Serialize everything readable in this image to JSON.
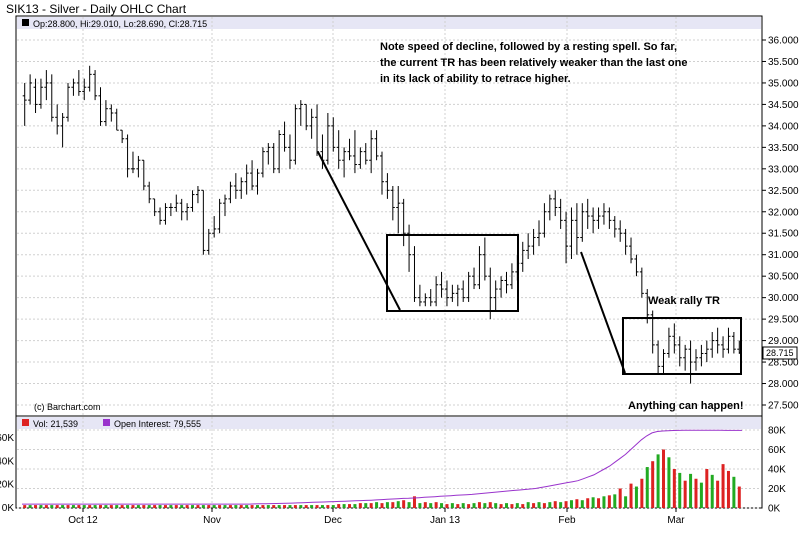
{
  "title": "SIK13 - Silver - Daily OHLC Chart",
  "price_header": "Op:28.800, Hi:29.010, Lo:28.690, Cl:28.715",
  "volume_header": "Vol: 21,539",
  "oi_header": "Open Interest: 79,555",
  "copyright": "(c) Barchart.com",
  "last_price_label": "28.715",
  "annotations": {
    "note_line1": "Note speed of decline, followed by a resting spell.  So far,",
    "note_line2": "the current TR has been relatively weaker than the last one",
    "note_line3": "in its lack of ability to retrace higher.",
    "weak_rally": "Weak rally TR",
    "anything": "Anything can happen!"
  },
  "colors": {
    "up_volume": "#22aa22",
    "down_volume": "#dd2222",
    "oi_line": "#9933cc",
    "header_bar": "#e6e6f5",
    "grid": "#d0d0d0"
  },
  "chart_data": {
    "type": "ohlc",
    "price_axis": {
      "min": 27.5,
      "max": 36.0,
      "ticks": [
        "36.000",
        "35.500",
        "35.000",
        "34.500",
        "34.000",
        "33.500",
        "33.000",
        "32.500",
        "32.000",
        "31.500",
        "31.000",
        "30.500",
        "30.000",
        "29.500",
        "29.000",
        "28.500",
        "28.000",
        "27.500"
      ]
    },
    "volume_axis": {
      "ticks_left": [
        "60K",
        "40K",
        "20K",
        "0K"
      ],
      "ticks_right": [
        "80K",
        "60K",
        "40K",
        "20K",
        "0K"
      ]
    },
    "x_labels": [
      "Oct 12",
      "Nov",
      "Dec",
      "Jan 13",
      "Feb",
      "Mar"
    ],
    "bars": [
      [
        34.7,
        35.0,
        34.0,
        34.6
      ],
      [
        34.6,
        35.2,
        34.5,
        35.0
      ],
      [
        34.9,
        35.1,
        34.3,
        34.5
      ],
      [
        34.5,
        35.1,
        34.4,
        34.9
      ],
      [
        34.9,
        35.3,
        34.6,
        35.0
      ],
      [
        35.0,
        35.2,
        34.1,
        34.2
      ],
      [
        34.2,
        34.5,
        33.8,
        34.0
      ],
      [
        34.0,
        34.3,
        33.5,
        34.2
      ],
      [
        34.2,
        35.0,
        34.1,
        34.9
      ],
      [
        34.9,
        35.1,
        34.7,
        35.0
      ],
      [
        35.0,
        35.3,
        34.7,
        34.8
      ],
      [
        34.8,
        35.1,
        34.6,
        34.9
      ],
      [
        34.9,
        35.4,
        34.8,
        35.2
      ],
      [
        35.2,
        35.3,
        34.6,
        34.7
      ],
      [
        34.7,
        34.9,
        34.0,
        34.1
      ],
      [
        34.1,
        34.6,
        34.0,
        34.4
      ],
      [
        34.4,
        34.5,
        34.1,
        34.3
      ],
      [
        34.3,
        34.4,
        33.9,
        33.9
      ],
      [
        33.9,
        33.9,
        33.6,
        33.7
      ],
      [
        33.7,
        33.8,
        32.8,
        33.0
      ],
      [
        33.0,
        33.4,
        32.9,
        33.0
      ],
      [
        33.0,
        33.3,
        32.8,
        33.2
      ],
      [
        33.2,
        33.2,
        32.5,
        32.6
      ],
      [
        32.6,
        32.7,
        32.2,
        32.3
      ],
      [
        32.3,
        32.3,
        31.9,
        32.0
      ],
      [
        32.0,
        32.1,
        31.7,
        31.8
      ],
      [
        31.8,
        32.2,
        31.7,
        32.1
      ],
      [
        32.1,
        32.2,
        31.9,
        32.1
      ],
      [
        32.1,
        32.4,
        32.0,
        32.2
      ],
      [
        32.2,
        32.3,
        31.8,
        32.0
      ],
      [
        32.0,
        32.2,
        31.8,
        32.1
      ],
      [
        32.1,
        32.5,
        32.0,
        32.4
      ],
      [
        32.4,
        32.6,
        32.2,
        32.5
      ],
      [
        32.5,
        32.5,
        31.0,
        31.1
      ],
      [
        31.1,
        31.6,
        31.0,
        31.5
      ],
      [
        31.5,
        31.9,
        31.4,
        31.6
      ],
      [
        31.6,
        32.3,
        31.5,
        32.2
      ],
      [
        32.2,
        32.4,
        31.9,
        32.3
      ],
      [
        32.3,
        32.7,
        32.2,
        32.6
      ],
      [
        32.6,
        32.9,
        32.3,
        32.5
      ],
      [
        32.5,
        32.8,
        32.3,
        32.7
      ],
      [
        32.7,
        33.1,
        32.4,
        32.9
      ],
      [
        32.9,
        33.2,
        32.5,
        32.6
      ],
      [
        32.6,
        33.0,
        32.4,
        32.9
      ],
      [
        32.9,
        33.5,
        32.8,
        33.4
      ],
      [
        33.4,
        33.6,
        33.1,
        33.5
      ],
      [
        33.5,
        33.6,
        32.9,
        33.0
      ],
      [
        33.0,
        33.9,
        32.9,
        33.8
      ],
      [
        33.8,
        34.1,
        33.4,
        33.5
      ],
      [
        33.5,
        33.8,
        33.0,
        33.2
      ],
      [
        33.2,
        34.5,
        33.1,
        34.4
      ],
      [
        34.4,
        34.6,
        34.0,
        34.5
      ],
      [
        34.5,
        34.5,
        33.9,
        34.0
      ],
      [
        34.0,
        34.4,
        33.7,
        34.2
      ],
      [
        34.2,
        34.5,
        33.3,
        33.4
      ],
      [
        33.4,
        33.8,
        33.0,
        33.2
      ],
      [
        33.2,
        34.3,
        33.1,
        34.0
      ],
      [
        34.0,
        34.2,
        33.4,
        33.5
      ],
      [
        33.5,
        33.9,
        33.0,
        33.2
      ],
      [
        33.2,
        33.5,
        32.8,
        33.4
      ],
      [
        33.4,
        33.7,
        33.2,
        33.3
      ],
      [
        33.3,
        33.9,
        32.9,
        33.1
      ],
      [
        33.1,
        33.5,
        33.0,
        33.4
      ],
      [
        33.4,
        33.6,
        33.1,
        33.2
      ],
      [
        33.2,
        33.9,
        32.9,
        33.7
      ],
      [
        33.7,
        33.9,
        33.2,
        33.3
      ],
      [
        33.3,
        33.4,
        32.4,
        32.7
      ],
      [
        32.7,
        32.9,
        32.3,
        32.5
      ],
      [
        32.5,
        32.6,
        31.8,
        32.1
      ],
      [
        32.1,
        32.6,
        31.5,
        32.2
      ],
      [
        32.2,
        32.3,
        31.2,
        31.5
      ],
      [
        31.5,
        31.7,
        30.6,
        31.0
      ],
      [
        31.0,
        31.2,
        29.9,
        30.0
      ],
      [
        30.0,
        30.3,
        29.8,
        29.9
      ],
      [
        29.9,
        30.1,
        29.8,
        30.0
      ],
      [
        30.0,
        30.2,
        29.8,
        29.9
      ],
      [
        29.9,
        30.5,
        29.8,
        30.3
      ],
      [
        30.3,
        30.6,
        30.0,
        30.2
      ],
      [
        30.2,
        30.4,
        29.8,
        30.0
      ],
      [
        30.0,
        30.3,
        29.9,
        30.1
      ],
      [
        30.1,
        30.3,
        29.8,
        30.2
      ],
      [
        30.2,
        30.4,
        29.9,
        30.0
      ],
      [
        30.0,
        30.6,
        29.9,
        30.5
      ],
      [
        30.5,
        30.7,
        30.2,
        30.3
      ],
      [
        30.3,
        31.2,
        30.2,
        31.0
      ],
      [
        31.0,
        31.4,
        30.4,
        30.5
      ],
      [
        30.5,
        30.7,
        29.5,
        30.0
      ],
      [
        30.0,
        30.4,
        29.7,
        30.2
      ],
      [
        30.2,
        30.5,
        30.0,
        30.4
      ],
      [
        30.4,
        30.6,
        30.1,
        30.3
      ],
      [
        30.3,
        30.8,
        30.2,
        30.6
      ],
      [
        30.6,
        31.0,
        30.4,
        30.8
      ],
      [
        30.8,
        31.3,
        30.6,
        31.1
      ],
      [
        31.1,
        31.5,
        30.9,
        31.2
      ],
      [
        31.2,
        31.6,
        31.0,
        31.4
      ],
      [
        31.4,
        31.8,
        31.2,
        31.5
      ],
      [
        31.5,
        32.2,
        31.4,
        32.0
      ],
      [
        32.0,
        32.4,
        31.8,
        32.3
      ],
      [
        32.3,
        32.5,
        31.9,
        32.1
      ],
      [
        32.1,
        32.3,
        31.6,
        31.8
      ],
      [
        31.8,
        32.0,
        30.8,
        31.2
      ],
      [
        31.2,
        32.1,
        30.9,
        31.8
      ],
      [
        31.8,
        32.2,
        31.0,
        31.4
      ],
      [
        31.4,
        32.2,
        31.3,
        32.0
      ],
      [
        32.0,
        32.3,
        31.6,
        31.9
      ],
      [
        31.9,
        32.1,
        31.5,
        31.8
      ],
      [
        31.8,
        32.1,
        31.6,
        31.9
      ],
      [
        31.9,
        32.2,
        31.7,
        32.0
      ],
      [
        32.0,
        32.1,
        31.6,
        31.8
      ],
      [
        31.8,
        31.9,
        31.4,
        31.6
      ],
      [
        31.6,
        31.8,
        31.3,
        31.5
      ],
      [
        31.5,
        31.6,
        31.0,
        31.2
      ],
      [
        31.2,
        31.4,
        30.8,
        30.9
      ],
      [
        30.9,
        31.0,
        30.5,
        30.6
      ],
      [
        30.6,
        30.7,
        30.0,
        30.1
      ],
      [
        30.1,
        30.2,
        29.4,
        29.6
      ],
      [
        29.6,
        29.7,
        28.7,
        28.9
      ],
      [
        28.9,
        29.0,
        28.2,
        28.4
      ],
      [
        28.4,
        28.8,
        28.2,
        28.7
      ],
      [
        28.7,
        29.3,
        28.6,
        29.1
      ],
      [
        29.1,
        29.4,
        28.7,
        28.9
      ],
      [
        28.9,
        29.1,
        28.4,
        28.6
      ],
      [
        28.6,
        28.9,
        28.3,
        28.8
      ],
      [
        28.8,
        29.0,
        28.0,
        28.5
      ],
      [
        28.5,
        28.8,
        28.3,
        28.6
      ],
      [
        28.6,
        28.9,
        28.4,
        28.7
      ],
      [
        28.7,
        29.0,
        28.5,
        28.8
      ],
      [
        28.8,
        29.2,
        28.6,
        29.0
      ],
      [
        29.0,
        29.3,
        28.7,
        28.9
      ],
      [
        28.9,
        29.1,
        28.6,
        28.8
      ],
      [
        28.8,
        29.3,
        28.7,
        29.1
      ],
      [
        29.1,
        29.2,
        28.7,
        28.8
      ],
      [
        28.8,
        29.0,
        28.69,
        28.715
      ]
    ],
    "volume": [
      [
        3,
        0
      ],
      [
        3,
        1
      ],
      [
        3,
        0
      ],
      [
        3,
        1
      ],
      [
        3,
        0
      ],
      [
        3,
        1
      ],
      [
        3,
        0
      ],
      [
        3,
        1
      ],
      [
        3,
        0
      ],
      [
        3,
        1
      ],
      [
        3,
        0
      ],
      [
        3,
        1
      ],
      [
        3,
        0
      ],
      [
        3,
        1
      ],
      [
        3,
        0
      ],
      [
        3,
        1
      ],
      [
        3,
        0
      ],
      [
        3,
        1
      ],
      [
        3,
        0
      ],
      [
        3,
        1
      ],
      [
        3,
        0
      ],
      [
        3,
        1
      ],
      [
        3,
        0
      ],
      [
        3,
        1
      ],
      [
        3,
        0
      ],
      [
        3,
        1
      ],
      [
        3,
        0
      ],
      [
        3,
        1
      ],
      [
        3,
        0
      ],
      [
        3,
        1
      ],
      [
        3,
        0
      ],
      [
        3,
        1
      ],
      [
        3,
        0
      ],
      [
        3,
        1
      ],
      [
        3,
        0
      ],
      [
        3,
        1
      ],
      [
        3,
        0
      ],
      [
        3,
        1
      ],
      [
        3,
        0
      ],
      [
        3,
        1
      ],
      [
        3,
        0
      ],
      [
        3,
        1
      ],
      [
        3,
        0
      ],
      [
        3,
        1
      ],
      [
        3,
        0
      ],
      [
        3,
        1
      ],
      [
        3,
        0
      ],
      [
        3,
        1
      ],
      [
        3,
        0
      ],
      [
        3,
        1
      ],
      [
        3,
        0
      ],
      [
        3,
        1
      ],
      [
        3,
        0
      ],
      [
        3,
        1
      ],
      [
        3,
        0
      ],
      [
        3,
        1
      ],
      [
        3,
        0
      ],
      [
        3,
        1
      ],
      [
        4,
        0
      ],
      [
        4,
        1
      ],
      [
        4,
        0
      ],
      [
        4,
        1
      ],
      [
        5,
        0
      ],
      [
        5,
        1
      ],
      [
        5,
        0
      ],
      [
        6,
        1
      ],
      [
        5,
        0
      ],
      [
        6,
        1
      ],
      [
        6,
        0
      ],
      [
        7,
        1
      ],
      [
        8,
        0
      ],
      [
        6,
        1
      ],
      [
        12,
        0
      ],
      [
        5,
        1
      ],
      [
        6,
        0
      ],
      [
        5,
        1
      ],
      [
        6,
        0
      ],
      [
        5,
        1
      ],
      [
        4,
        0
      ],
      [
        5,
        1
      ],
      [
        4,
        0
      ],
      [
        5,
        1
      ],
      [
        4,
        0
      ],
      [
        5,
        1
      ],
      [
        6,
        0
      ],
      [
        5,
        1
      ],
      [
        6,
        0
      ],
      [
        5,
        1
      ],
      [
        4,
        0
      ],
      [
        5,
        1
      ],
      [
        4,
        0
      ],
      [
        5,
        1
      ],
      [
        4,
        0
      ],
      [
        6,
        1
      ],
      [
        5,
        0
      ],
      [
        6,
        1
      ],
      [
        5,
        0
      ],
      [
        6,
        1
      ],
      [
        7,
        0
      ],
      [
        6,
        1
      ],
      [
        7,
        0
      ],
      [
        8,
        1
      ],
      [
        9,
        0
      ],
      [
        8,
        1
      ],
      [
        10,
        0
      ],
      [
        11,
        1
      ],
      [
        10,
        0
      ],
      [
        12,
        1
      ],
      [
        13,
        0
      ],
      [
        14,
        1
      ],
      [
        20,
        0
      ],
      [
        12,
        1
      ],
      [
        25,
        0
      ],
      [
        22,
        1
      ],
      [
        30,
        0
      ],
      [
        42,
        1
      ],
      [
        48,
        0
      ],
      [
        55,
        1
      ],
      [
        60,
        0
      ],
      [
        52,
        1
      ],
      [
        40,
        0
      ],
      [
        36,
        1
      ],
      [
        28,
        0
      ],
      [
        35,
        1
      ],
      [
        30,
        0
      ],
      [
        26,
        1
      ],
      [
        40,
        0
      ],
      [
        34,
        1
      ],
      [
        28,
        0
      ],
      [
        45,
        0
      ],
      [
        38,
        0
      ],
      [
        32,
        1
      ],
      [
        22,
        0
      ]
    ],
    "open_interest": [
      4,
      4,
      4,
      4,
      4,
      4,
      4,
      4,
      4,
      4,
      4,
      4,
      4,
      4,
      4,
      4,
      4,
      4,
      4,
      4,
      4,
      4,
      4,
      4,
      4,
      4,
      4,
      4,
      4,
      4,
      4,
      4,
      4,
      4,
      4,
      4,
      4,
      4,
      4,
      4,
      4,
      4,
      4,
      4,
      4.2,
      4.3,
      4.4,
      4.5,
      4.6,
      4.7,
      4.8,
      5,
      5.2,
      5.4,
      5.6,
      5.8,
      6,
      6.2,
      6.4,
      6.6,
      6.8,
      7,
      7.2,
      7.4,
      7.6,
      7.8,
      8,
      8.3,
      8.6,
      8.9,
      9.2,
      9.5,
      9.8,
      10,
      10.3,
      10.6,
      11,
      11.3,
      11.6,
      12,
      12.3,
      12.6,
      13,
      13.3,
      13.6,
      14,
      14.5,
      15,
      15.5,
      16,
      16.5,
      17,
      17.5,
      18,
      18.5,
      19,
      19.5,
      20,
      21,
      22,
      23,
      24,
      25,
      26,
      27,
      28,
      30,
      32,
      34,
      37,
      40,
      43,
      47,
      51,
      55,
      60,
      65,
      70,
      74,
      77,
      78.5,
      79,
      79.3,
      79.5,
      79.6,
      79.7,
      79.8,
      79.8,
      79.8,
      79.8,
      79.8,
      79.7,
      79.7,
      79.6,
      79.6,
      79.6,
      79.555
    ]
  }
}
